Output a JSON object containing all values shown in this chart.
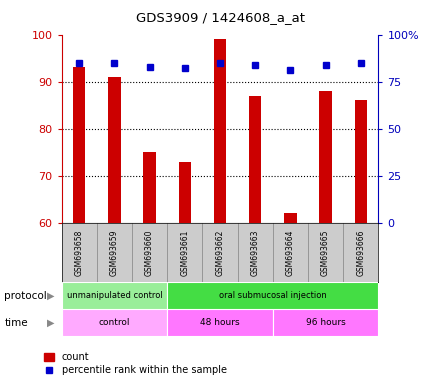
{
  "title": "GDS3909 / 1424608_a_at",
  "samples": [
    "GSM693658",
    "GSM693659",
    "GSM693660",
    "GSM693661",
    "GSM693662",
    "GSM693663",
    "GSM693664",
    "GSM693665",
    "GSM693666"
  ],
  "count_values": [
    93,
    91,
    75,
    73,
    99,
    87,
    62,
    88,
    86
  ],
  "percentile_values": [
    85,
    85,
    83,
    82,
    85,
    84,
    81,
    84,
    85
  ],
  "ylim_left": [
    60,
    100
  ],
  "ylim_right": [
    0,
    100
  ],
  "right_ticks": [
    0,
    25,
    50,
    75,
    100
  ],
  "right_tick_labels": [
    "0",
    "25",
    "50",
    "75",
    "100%"
  ],
  "left_ticks": [
    60,
    70,
    80,
    90,
    100
  ],
  "left_tick_labels": [
    "60",
    "70",
    "80",
    "90",
    "100"
  ],
  "grid_lines": [
    70,
    80,
    90
  ],
  "protocol_groups": [
    {
      "label": "unmanipulated control",
      "start": 0,
      "end": 3,
      "color": "#99EE99"
    },
    {
      "label": "oral submucosal injection",
      "start": 3,
      "end": 9,
      "color": "#44DD44"
    }
  ],
  "time_groups": [
    {
      "label": "control",
      "start": 0,
      "end": 3,
      "color": "#FFAAFF"
    },
    {
      "label": "48 hours",
      "start": 3,
      "end": 6,
      "color": "#FF88FF"
    },
    {
      "label": "96 hours",
      "start": 6,
      "end": 9,
      "color": "#FF88FF"
    }
  ],
  "bar_color": "#CC0000",
  "dot_color": "#0000CC",
  "axis_color_left": "#CC0000",
  "axis_color_right": "#0000BB",
  "background_color": "#FFFFFF",
  "tick_area_bg": "#CCCCCC",
  "bar_width": 0.35
}
